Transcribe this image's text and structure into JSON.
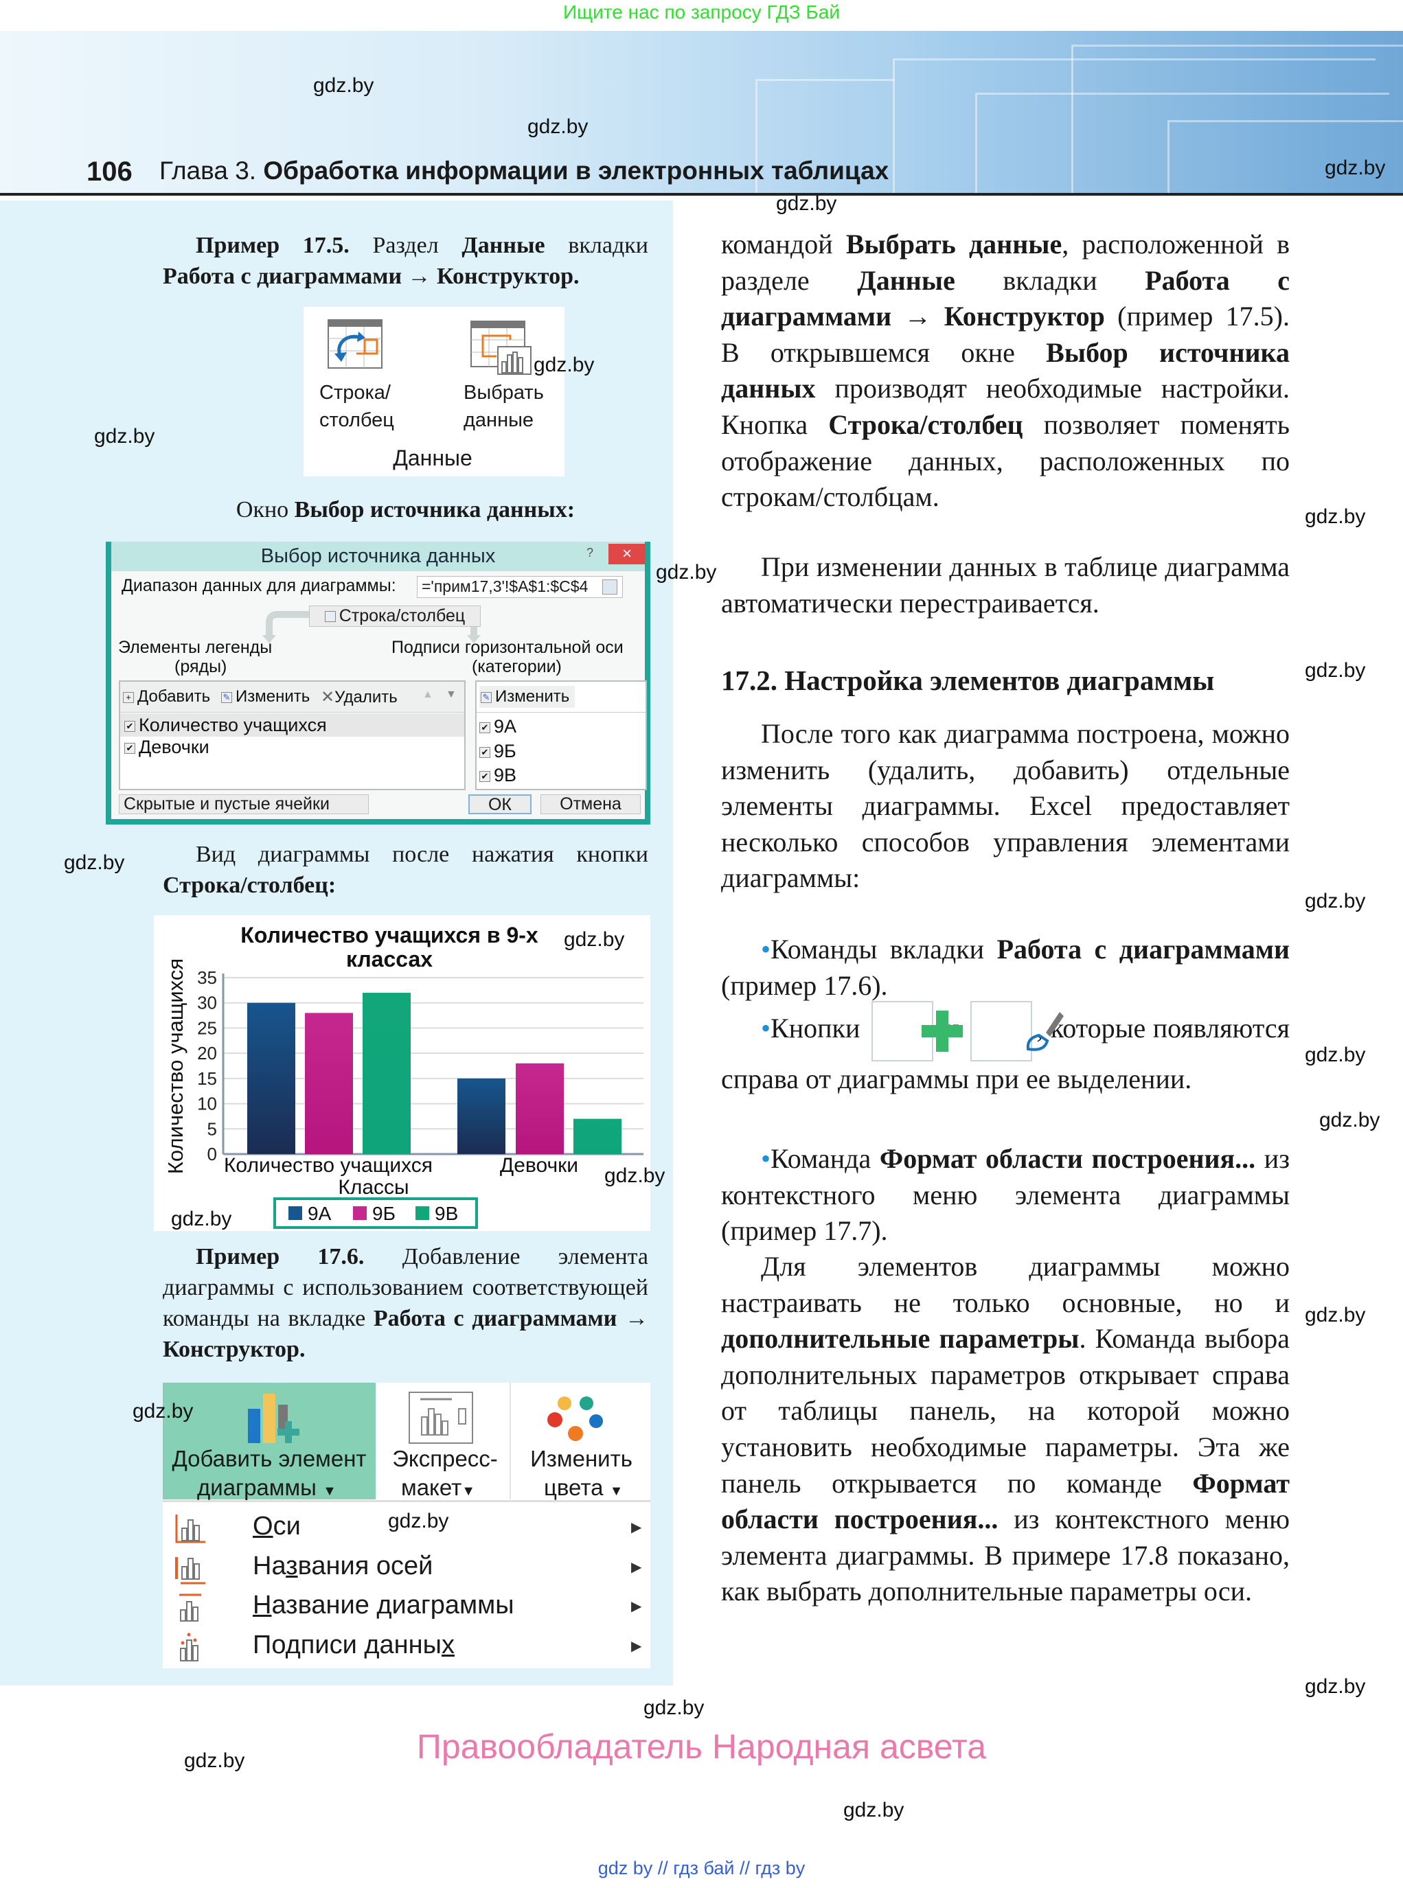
{
  "top_note": "Ищите нас по запросу ГДЗ Бай",
  "header": {
    "page_number": "106",
    "chapter_prefix": "Глава 3.",
    "chapter_title": "Обработка информации в электронных таблицах"
  },
  "watermark": "gdz.by",
  "left": {
    "example_17_5": {
      "segments": [
        {
          "t": "Пример 17.5.",
          "b": true
        },
        {
          "t": " Раздел ",
          "b": false
        },
        {
          "t": "Данные",
          "b": true
        },
        {
          "t": " вкладки ",
          "b": false
        },
        {
          "t": "Работа с диаграммами → Конструктор.",
          "b": true
        }
      ]
    },
    "ribbon_data": {
      "btn1_line1": "Строка/",
      "btn1_line2": "столбец",
      "btn2_line1": "Выбрать",
      "btn2_line2": "данные",
      "group": "Данные",
      "icon1": "switch-row-column-icon",
      "icon2": "select-data-icon"
    },
    "dialog_caption": {
      "segments": [
        {
          "t": "Окно ",
          "b": false
        },
        {
          "t": "Выбор источника данных:",
          "b": true
        }
      ]
    },
    "dialog": {
      "title": "Выбор источника данных",
      "help": "?",
      "close": "×",
      "range_label": "Диапазон данных для диаграммы:",
      "range_value": "='прим17,3'!$A$1:$C$4",
      "switch_button": "Строка/столбец",
      "legend_label_1": "Элементы легенды",
      "legend_label_2": "(ряды)",
      "axis_label_1": "Подписи горизонтальной оси",
      "axis_label_2": "(категории)",
      "add": "Добавить",
      "edit": "Изменить",
      "delete": "Удалить",
      "series": [
        {
          "label": "Количество учащихся",
          "checked": true
        },
        {
          "label": "Девочки",
          "checked": true
        }
      ],
      "axis_edit": "Изменить",
      "categories": [
        {
          "label": "9А",
          "checked": true
        },
        {
          "label": "9Б",
          "checked": true
        },
        {
          "label": "9В",
          "checked": true
        }
      ],
      "hidden_cells": "Скрытые и пустые ячейки",
      "ok": "ОК",
      "cancel": "Отмена"
    },
    "chart_caption": {
      "segments": [
        {
          "t": "Вид диаграммы после нажатия кнопки ",
          "b": false
        },
        {
          "t": "Строка/столбец:",
          "b": true
        }
      ]
    },
    "example_17_6": {
      "segments": [
        {
          "t": "Пример 17.6.",
          "b": true
        },
        {
          "t": " Добавление элемента диаграммы с использованием соответствующей команды на вкладке ",
          "b": false
        },
        {
          "t": "Работа с диаграммами → Конструктор.",
          "b": true
        }
      ]
    },
    "ribbon_design": {
      "add_element_1": "Добавить элемент",
      "add_element_2": "диаграммы",
      "quick_layout_1": "Экспресс-",
      "quick_layout_2": "макет",
      "change_colors_1": "Изменить",
      "change_colors_2": "цвета",
      "highlight_color": "#86d1b6",
      "menu_items": [
        {
          "pre": "",
          "u": "О",
          "post": "си",
          "icon": "axes-icon"
        },
        {
          "pre": "На",
          "u": "з",
          "post": "вания осей",
          "icon": "axis-titles-icon"
        },
        {
          "pre": "",
          "u": "Н",
          "post": "азвание диаграммы",
          "icon": "chart-title-icon"
        },
        {
          "pre": "Подписи данны",
          "u": "х",
          "post": "",
          "icon": "data-labels-icon"
        }
      ]
    }
  },
  "chart_data": {
    "type": "bar",
    "title": "Количество учащихся в 9-х классах",
    "title_line1": "Количество учащихся в 9-х",
    "title_line2": "классах",
    "xlabel": "Классы",
    "ylabel": "Количество учащихся",
    "categories": [
      "Количество учащихся",
      "Девочки"
    ],
    "series": [
      {
        "name": "9А",
        "values": [
          30,
          15
        ],
        "color": "#17568e"
      },
      {
        "name": "9Б",
        "values": [
          28,
          18
        ],
        "color": "#c5288f"
      },
      {
        "name": "9В",
        "values": [
          32,
          7
        ],
        "color": "#12a77a"
      }
    ],
    "ylim": [
      0,
      35
    ],
    "yticks": [
      "0",
      "5",
      "10",
      "15",
      "20",
      "25",
      "30",
      "35"
    ],
    "grid": true,
    "legend_position": "bottom"
  },
  "right": {
    "paragraphs": [
      {
        "indent": false,
        "segments": [
          {
            "t": "командой ",
            "b": false
          },
          {
            "t": "Выбрать данные",
            "b": true
          },
          {
            "t": ", расположенной в разделе ",
            "b": false
          },
          {
            "t": "Данные",
            "b": true
          },
          {
            "t": " вкладки ",
            "b": false
          },
          {
            "t": "Работа с диаграммами → Конструктор",
            "b": true
          },
          {
            "t": " (пример 17.5). В открывшемся окне ",
            "b": false
          },
          {
            "t": "Выбор источника данных",
            "b": true
          },
          {
            "t": " производят необходимые настройки. Кнопка ",
            "b": false
          },
          {
            "t": "Строка/столбец",
            "b": true
          },
          {
            "t": " позволяет поменять отображение данных, расположенных по строкам/столбцам.",
            "b": false
          }
        ]
      },
      {
        "indent": true,
        "segments": [
          {
            "t": "При изменении данных в таблице диаграмма автоматически перестраивается.",
            "b": false
          }
        ]
      },
      {
        "indent": false,
        "heading": true,
        "segments": [
          {
            "t": "17.2. Настройка элементов диаграммы",
            "b": true
          }
        ]
      },
      {
        "indent": true,
        "segments": [
          {
            "t": "После того как диаграмма построена, можно изменить (удалить, добавить) отдельные элементы диаграммы. Excel предоставляет несколько способов управления элементами диаграммы:",
            "b": false
          }
        ]
      },
      {
        "indent": true,
        "bullet": true,
        "segments": [
          {
            "t": "Команды вкладки ",
            "b": false
          },
          {
            "t": "Работа с диаграммами",
            "b": true
          },
          {
            "t": " (пример 17.6).",
            "b": false
          }
        ]
      },
      {
        "indent": true,
        "bullet": true,
        "segments": [
          {
            "t": "Кнопки ",
            "b": false
          },
          {
            "icon": "plus-icon"
          },
          {
            "t": " и ",
            "b": false
          },
          {
            "icon": "brush-icon"
          },
          {
            "t": ", которые появляются справа от диаграммы при ее выделении.",
            "b": false
          }
        ]
      },
      {
        "indent": true,
        "bullet": true,
        "segments": [
          {
            "t": "Команда ",
            "b": false
          },
          {
            "t": "Формат области построения...",
            "b": true
          },
          {
            "t": " из контекстного меню элемента диаграммы (пример 17.7).",
            "b": false
          }
        ]
      },
      {
        "indent": true,
        "segments": [
          {
            "t": "Для элементов диаграммы можно настраивать не только основные, но и ",
            "b": false
          },
          {
            "t": "дополнительные параметры",
            "b": true
          },
          {
            "t": ". Команда выбора дополнительных параметров открывает справа от таблицы панель, на которой можно установить необходимые параметры. Эта же панель открывается по команде ",
            "b": false
          },
          {
            "t": "Формат области построения...",
            "b": true
          },
          {
            "t": " из контекстного меню элемента диаграммы. В примере 17.8 показано, как выбрать дополнительные параметры оси.",
            "b": false
          }
        ]
      }
    ]
  },
  "rights": "Правообладатель Народная асвета",
  "footer": "gdz by  //  гдз бай  //  гдз by",
  "colors": {
    "panel": "#e1f3fa",
    "dialog_border": "#21a59a",
    "bullet": "#1f8fd6",
    "rights": "#e97aab"
  }
}
